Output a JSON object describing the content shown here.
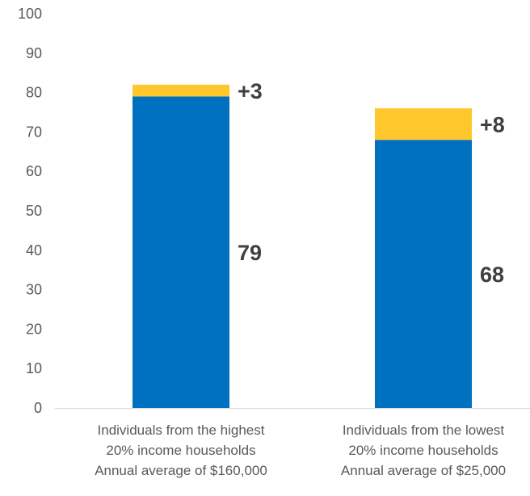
{
  "chart_data": {
    "type": "bar",
    "stacked": true,
    "categories": [
      [
        "Individuals from the highest",
        "20% income households",
        "Annual average of $160,000"
      ],
      [
        "Individuals from the lowest",
        "20% income households",
        "Annual average of $25,000"
      ]
    ],
    "series": [
      {
        "values": [
          79,
          68
        ],
        "color": "#0070C0",
        "labels": [
          "79",
          "68"
        ]
      },
      {
        "values": [
          3,
          8
        ],
        "color": "#FFC72C",
        "labels": [
          "+3",
          "+8"
        ]
      }
    ],
    "ylim": [
      0,
      100
    ],
    "yticks": [
      "0",
      "10",
      "20",
      "30",
      "40",
      "50",
      "60",
      "70",
      "80",
      "90",
      "100"
    ],
    "grid": false,
    "legend": "none",
    "axis_color": "#D9D9D9"
  }
}
